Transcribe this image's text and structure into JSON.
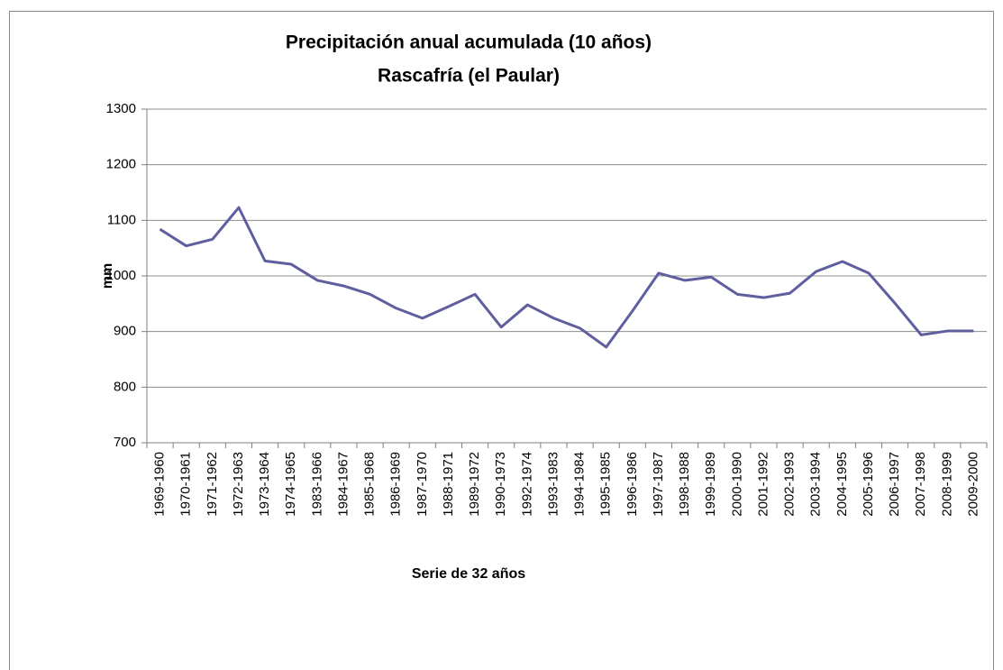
{
  "chart_data": {
    "type": "line",
    "title": "Precipitación anual acumulada (10 años)",
    "subtitle": "Rascafría (el Paular)",
    "x_label": "Serie de 32 años",
    "y_label": "mm",
    "categories": [
      "1969-1960",
      "1970-1961",
      "1971-1962",
      "1972-1963",
      "1973-1964",
      "1974-1965",
      "1983-1966",
      "1984-1967",
      "1985-1968",
      "1986-1969",
      "1987-1970",
      "1988-1971",
      "1989-1972",
      "1990-1973",
      "1992-1974",
      "1993-1983",
      "1994-1984",
      "1995-1985",
      "1996-1986",
      "1997-1987",
      "1998-1988",
      "1999-1989",
      "2000-1990",
      "2001-1992",
      "2002-1993",
      "2003-1994",
      "2004-1995",
      "2005-1996",
      "2006-1997",
      "2007-1998",
      "2008-1999",
      "2009-2000"
    ],
    "series": [
      {
        "color": "#5f5f9f",
        "values": [
          1084,
          1054,
          1066,
          1123,
          1027,
          1021,
          992,
          982,
          967,
          942,
          924,
          945,
          967,
          908,
          948,
          924,
          906,
          872,
          937,
          1005,
          992,
          998,
          967,
          961,
          969,
          1008,
          1026,
          1005,
          951,
          894,
          901,
          901
        ]
      }
    ],
    "ylim": [
      700,
      1300
    ],
    "yticks": [
      700,
      800,
      900,
      1000,
      1100,
      1200,
      1300
    ],
    "grid": true
  }
}
